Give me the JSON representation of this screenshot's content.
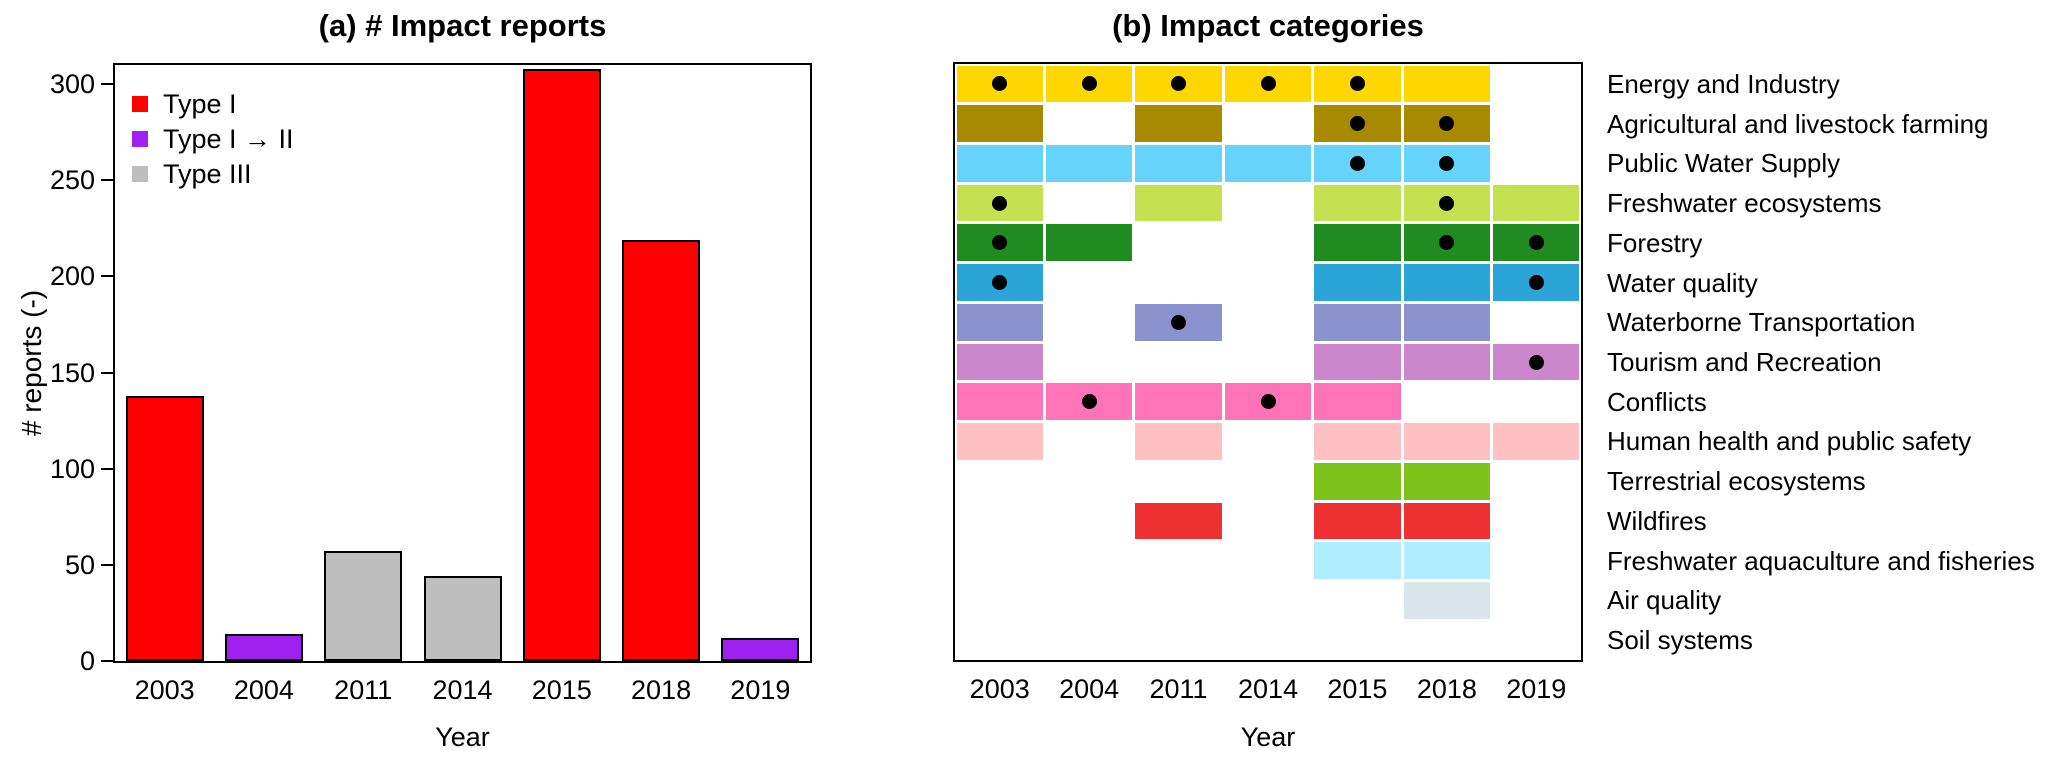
{
  "chart_data": [
    {
      "type": "bar",
      "title": "(a) # Impact reports",
      "xlabel": "Year",
      "ylabel": "# reports (-)",
      "categories": [
        "2003",
        "2004",
        "2011",
        "2014",
        "2015",
        "2018",
        "2019"
      ],
      "values": [
        138,
        14,
        57,
        44,
        308,
        219,
        12
      ],
      "bar_types": [
        "Type I",
        "Type I → II",
        "Type III",
        "Type III",
        "Type I",
        "Type I",
        "Type I → II"
      ],
      "bar_colors": [
        "#FF0000",
        "#A020F0",
        "#BEBEBE",
        "#BEBEBE",
        "#FF0000",
        "#FF0000",
        "#A020F0"
      ],
      "ylim": [
        0,
        310
      ],
      "yticks": [
        0,
        50,
        100,
        150,
        200,
        250,
        300
      ],
      "grid": false,
      "legend_position": "top-left",
      "legend": [
        {
          "label": "Type I",
          "color": "#FF0000"
        },
        {
          "label": "Type I → II",
          "color": "#A020F0"
        },
        {
          "label": "Type III",
          "color": "#BEBEBE"
        }
      ]
    },
    {
      "type": "heatmap",
      "title": "(b) Impact categories",
      "xlabel": "Year",
      "x": [
        "2003",
        "2004",
        "2011",
        "2014",
        "2015",
        "2018",
        "2019"
      ],
      "marker": "black-dot",
      "rows": [
        {
          "label": "Energy and Industry",
          "color": "#FFD700",
          "filled": [
            1,
            1,
            1,
            1,
            1,
            1,
            0
          ],
          "dots": [
            1,
            1,
            1,
            1,
            1,
            0,
            0
          ]
        },
        {
          "label": "Agricultural and livestock farming",
          "color": "#A88A00",
          "filled": [
            1,
            0,
            1,
            0,
            1,
            1,
            0
          ],
          "dots": [
            0,
            0,
            0,
            0,
            1,
            1,
            0
          ]
        },
        {
          "label": "Public Water Supply",
          "color": "#66D3FB",
          "filled": [
            1,
            1,
            1,
            1,
            1,
            1,
            0
          ],
          "dots": [
            0,
            0,
            0,
            0,
            1,
            1,
            0
          ]
        },
        {
          "label": "Freshwater ecosystems",
          "color": "#C5E050",
          "filled": [
            1,
            0,
            1,
            0,
            1,
            1,
            1
          ],
          "dots": [
            1,
            0,
            0,
            0,
            0,
            1,
            0
          ]
        },
        {
          "label": "Forestry",
          "color": "#208B20",
          "filled": [
            1,
            1,
            0,
            0,
            1,
            1,
            1
          ],
          "dots": [
            1,
            0,
            0,
            0,
            0,
            1,
            1
          ]
        },
        {
          "label": "Water quality",
          "color": "#2BA4D8",
          "filled": [
            1,
            0,
            0,
            0,
            1,
            1,
            1
          ],
          "dots": [
            1,
            0,
            0,
            0,
            0,
            0,
            1
          ]
        },
        {
          "label": "Waterborne Transportation",
          "color": "#8B93CE",
          "filled": [
            1,
            0,
            1,
            0,
            1,
            1,
            0
          ],
          "dots": [
            0,
            0,
            1,
            0,
            0,
            0,
            0
          ]
        },
        {
          "label": "Tourism and Recreation",
          "color": "#CC87CC",
          "filled": [
            1,
            0,
            0,
            0,
            1,
            1,
            1
          ],
          "dots": [
            0,
            0,
            0,
            0,
            0,
            0,
            1
          ]
        },
        {
          "label": "Conflicts",
          "color": "#FF73B9",
          "filled": [
            1,
            1,
            1,
            1,
            1,
            0,
            0
          ],
          "dots": [
            0,
            1,
            0,
            1,
            0,
            0,
            0
          ]
        },
        {
          "label": "Human health and public safety",
          "color": "#FFC0C2",
          "filled": [
            1,
            0,
            1,
            0,
            1,
            1,
            1
          ],
          "dots": [
            0,
            0,
            0,
            0,
            0,
            0,
            0
          ]
        },
        {
          "label": "Terrestrial ecosystems",
          "color": "#7EC31B",
          "filled": [
            0,
            0,
            0,
            0,
            1,
            1,
            0
          ],
          "dots": [
            0,
            0,
            0,
            0,
            0,
            0,
            0
          ]
        },
        {
          "label": "Wildfires",
          "color": "#EE3032",
          "filled": [
            0,
            0,
            1,
            0,
            1,
            1,
            0
          ],
          "dots": [
            0,
            0,
            0,
            0,
            0,
            0,
            0
          ]
        },
        {
          "label": "Freshwater aquaculture and fisheries",
          "color": "#AFECFC",
          "filled": [
            0,
            0,
            0,
            0,
            1,
            1,
            0
          ],
          "dots": [
            0,
            0,
            0,
            0,
            0,
            0,
            0
          ]
        },
        {
          "label": "Air quality",
          "color": "#D8E5EB",
          "filled": [
            0,
            0,
            0,
            0,
            0,
            1,
            0
          ],
          "dots": [
            0,
            0,
            0,
            0,
            0,
            0,
            0
          ]
        },
        {
          "label": "Soil systems",
          "color": "#FFFFFF",
          "filled": [
            0,
            0,
            0,
            0,
            0,
            0,
            0
          ],
          "dots": [
            0,
            0,
            0,
            0,
            0,
            0,
            0
          ]
        }
      ]
    }
  ]
}
